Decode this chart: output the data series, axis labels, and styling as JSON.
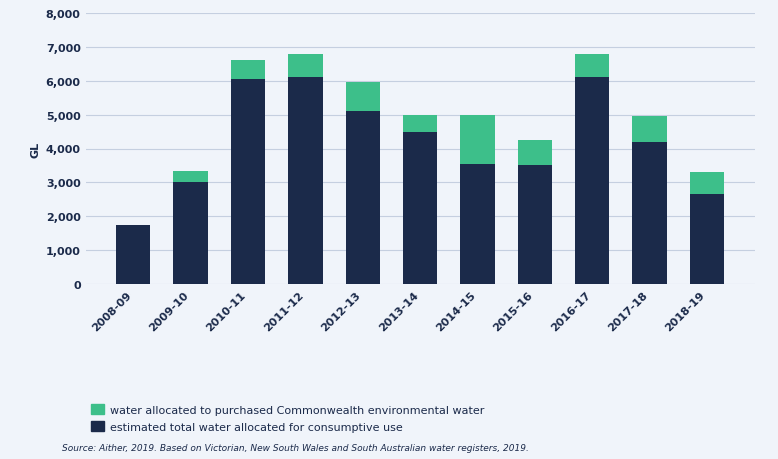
{
  "categories": [
    "2008-09",
    "2009-10",
    "2010-11",
    "2011-12",
    "2012-13",
    "2013-14",
    "2014-15",
    "2015-16",
    "2016-17",
    "2017-18",
    "2018-19"
  ],
  "consumptive_use": [
    1750,
    3000,
    6050,
    6100,
    5100,
    4500,
    3550,
    3500,
    6100,
    4200,
    2650
  ],
  "environmental_water": [
    0,
    350,
    550,
    700,
    850,
    500,
    1450,
    750,
    700,
    750,
    650
  ],
  "bar_color_consumptive": "#1b2a4a",
  "bar_color_environmental": "#3dbf8a",
  "background_color": "#f0f4fa",
  "plot_bg_color": "#f0f4fa",
  "grid_color": "#c5cfe0",
  "ylabel": "GL",
  "ylim": [
    0,
    8000
  ],
  "yticks": [
    0,
    1000,
    2000,
    3000,
    4000,
    5000,
    6000,
    7000,
    8000
  ],
  "legend_env_label": "water allocated to purchased Commonwealth environmental water",
  "legend_cons_label": "estimated total water allocated for consumptive use",
  "source_text": "Source: Aither, 2019. Based on Victorian, New South Wales and South Australian water registers, 2019.",
  "axis_fontsize": 8,
  "legend_fontsize": 8,
  "source_fontsize": 6.5,
  "ylabel_fontsize": 8,
  "bar_width": 0.6
}
